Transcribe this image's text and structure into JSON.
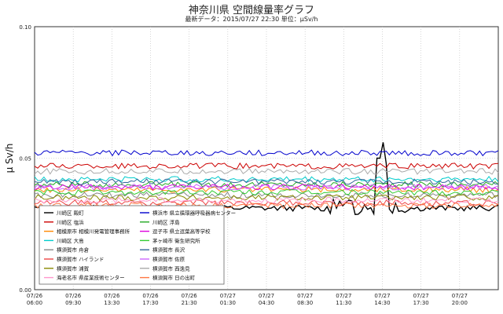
{
  "header": {
    "title": "神奈川県 空間線量率グラフ",
    "subtitle": "最新データ：2015/07/27 22:30 単位：μSv/h"
  },
  "chart_data": {
    "type": "line",
    "ylabel": "μ Sv/h",
    "ylim": [
      0.0,
      0.1
    ],
    "y_ticks": [
      "0.00",
      "0.05",
      "0.10"
    ],
    "x_ticks": [
      [
        "07/26",
        "06:00"
      ],
      [
        "07/26",
        "09:30"
      ],
      [
        "07/26",
        "13:30"
      ],
      [
        "07/26",
        "17:30"
      ],
      [
        "07/26",
        "21:30"
      ],
      [
        "07/27",
        "01:30"
      ],
      [
        "07/27",
        "04:30"
      ],
      [
        "07/27",
        "08:30"
      ],
      [
        "07/27",
        "11:30"
      ],
      [
        "07/27",
        "14:30"
      ],
      [
        "07/27",
        "17:30"
      ],
      [
        "07/27",
        "20:00"
      ]
    ],
    "series": [
      {
        "name": "川崎区 殿町",
        "color": "#000000",
        "level": 0.031,
        "spike": true
      },
      {
        "name": "川崎区 塩浜",
        "color": "#cc0000",
        "level": 0.047
      },
      {
        "name": "相模原市 相模川発電管理事務所",
        "color": "#ff8800",
        "level": 0.038
      },
      {
        "name": "川崎区 大島",
        "color": "#00cccc",
        "level": 0.042
      },
      {
        "name": "横須賀市 舟倉",
        "color": "#888888",
        "level": 0.036
      },
      {
        "name": "横須賀市 ハイランド",
        "color": "#ee4444",
        "level": 0.033
      },
      {
        "name": "横須賀市 浦賀",
        "color": "#888800",
        "level": 0.035
      },
      {
        "name": "海老名市 県産業技術センター",
        "color": "#ff99cc",
        "level": 0.034
      },
      {
        "name": "横浜市 県立循環器呼吸器病センター",
        "color": "#0000cc",
        "level": 0.052
      },
      {
        "name": "川崎区 浮島",
        "color": "#22aa22",
        "level": 0.04
      },
      {
        "name": "逗子市 県立逗葉高等学校",
        "color": "#dd00dd",
        "level": 0.039
      },
      {
        "name": "茅ヶ崎市 衛生研究所",
        "color": "#33cc33",
        "level": 0.037
      },
      {
        "name": "横須賀市 長沢",
        "color": "#336699",
        "level": 0.041
      },
      {
        "name": "横須賀市 佐原",
        "color": "#cc66ff",
        "level": 0.039
      },
      {
        "name": "横須賀市 西逸見",
        "color": "#aaaaaa",
        "level": 0.045
      },
      {
        "name": "横須賀市 日の出町",
        "color": "#ff7744",
        "level": 0.032
      }
    ],
    "legend_position": "bottom-left"
  }
}
